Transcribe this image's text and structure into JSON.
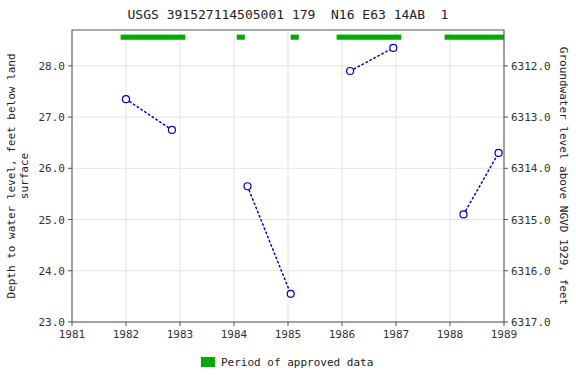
{
  "chart_data": {
    "type": "line",
    "title": "USGS 391527114505001 179  N16 E63 14AB  1",
    "ylabel": "Depth to water level, feet below land\nsurface",
    "y2label": "Groundwater level above NGVD 1929, feet",
    "xlim": [
      1981,
      1989
    ],
    "xticks": [
      1981,
      1982,
      1983,
      1984,
      1985,
      1986,
      1987,
      1988,
      1989
    ],
    "ylim": [
      23.0,
      28.7
    ],
    "yticks": [
      {
        "value": 23.0,
        "label": "23.0"
      },
      {
        "value": 24.0,
        "label": "24.0"
      },
      {
        "value": 25.0,
        "label": "25.0"
      },
      {
        "value": 26.0,
        "label": "26.0"
      },
      {
        "value": 27.0,
        "label": "27.0"
      },
      {
        "value": 28.0,
        "label": "28.0"
      }
    ],
    "y2lim": [
      6317.0,
      6311.3
    ],
    "y2ticks": [
      {
        "value": 6317.0,
        "label": "6317.0"
      },
      {
        "value": 6316.0,
        "label": "6316.0"
      },
      {
        "value": 6315.0,
        "label": "6315.0"
      },
      {
        "value": 6314.0,
        "label": "6314.0"
      },
      {
        "value": 6313.0,
        "label": "6313.0"
      },
      {
        "value": 6312.0,
        "label": "6312.0"
      }
    ],
    "grid": true,
    "legend": "bottom",
    "series": [
      {
        "color": "#0000BB",
        "line_style": "dotted",
        "marker": "circle",
        "x": [
          1982.0,
          1982.85
        ],
        "values": [
          27.35,
          26.75
        ]
      },
      {
        "color": "#0000BB",
        "line_style": "dotted",
        "marker": "circle",
        "x": [
          1984.25,
          1985.05
        ],
        "values": [
          25.65,
          23.55
        ]
      },
      {
        "color": "#0000BB",
        "line_style": "dotted",
        "marker": "circle",
        "x": [
          1986.15,
          1986.95
        ],
        "values": [
          27.9,
          28.35
        ]
      },
      {
        "color": "#0000BB",
        "line_style": "dotted",
        "marker": "circle",
        "x": [
          1988.25,
          1988.9
        ],
        "values": [
          25.1,
          26.3
        ]
      }
    ],
    "periods": {
      "name": "Period of approved data",
      "color": "#00AA00",
      "ranges": [
        [
          1981.9,
          1983.1
        ],
        [
          1984.05,
          1984.2
        ],
        [
          1985.05,
          1985.2
        ],
        [
          1985.9,
          1987.1
        ],
        [
          1987.9,
          1989.0
        ]
      ],
      "y": 28.56,
      "height": 0.1
    }
  }
}
